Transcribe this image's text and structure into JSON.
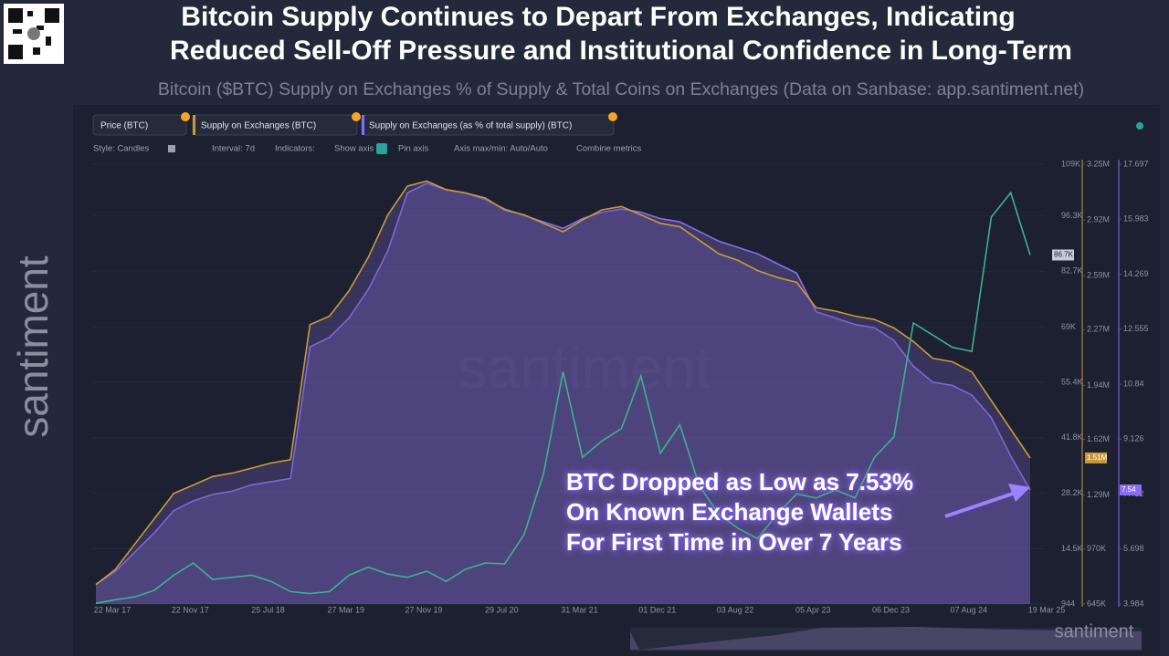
{
  "header": {
    "title_lines": [
      "Bitcoin Supply Continues to Depart From Exchanges, Indicating",
      "Reduced Sell-Off Pressure and Institutional Confidence in Long-Term"
    ],
    "subtitle": "Bitcoin ($BTC) Supply on Exchanges % of Supply & Total Coins on Exchanges (Data on Sanbase: app.santiment.net)"
  },
  "brand": "santiment",
  "tabs": [
    "Price (BTC)",
    "Supply on Exchanges (BTC)",
    "Supply on Exchanges (as % of total supply) (BTC)"
  ],
  "toolbar": [
    "Style: Candles",
    "Interval: 7d",
    "Indicators:",
    "Show axis",
    "Pin axis",
    "Axis max/min: Auto/Auto",
    "Combine metrics"
  ],
  "chart_data": {
    "type": "line",
    "annotation_lines": [
      "BTC Dropped as Low as 7.53%",
      "On Known Exchange Wallets",
      "For First Time in Over 7 Years"
    ],
    "categories": [
      "22 Mar 17",
      null,
      null,
      null,
      "22 Nov 17",
      null,
      null,
      null,
      "25 Jul 18",
      null,
      null,
      null,
      "27 Mar 19",
      null,
      null,
      null,
      "27 Nov 19",
      null,
      null,
      null,
      "29 Jul 20",
      null,
      null,
      null,
      "31 Mar 21",
      null,
      null,
      null,
      "01 Dec 21",
      null,
      null,
      null,
      "03 Aug 22",
      null,
      null,
      null,
      "05 Apr 23",
      null,
      null,
      null,
      "06 Dec 23",
      null,
      null,
      null,
      "07 Aug 24",
      null,
      null,
      null,
      "19 Mar 25"
    ],
    "series": [
      {
        "name": "Supply on Exchanges (as % of total supply) (BTC)",
        "color": "#8b6cf0",
        "axis": "y3",
        "area": true,
        "last_label": "7.54",
        "values": [
          4.6,
          5.0,
          5.6,
          6.2,
          6.9,
          7.2,
          7.4,
          7.5,
          7.7,
          7.8,
          7.9,
          12.0,
          12.3,
          12.9,
          13.8,
          15.0,
          16.8,
          17.1,
          16.9,
          16.8,
          16.6,
          16.3,
          16.1,
          15.9,
          15.7,
          16.0,
          16.2,
          16.3,
          16.2,
          16.0,
          15.9,
          15.6,
          15.3,
          15.1,
          14.9,
          14.6,
          14.3,
          13.1,
          12.9,
          12.7,
          12.6,
          12.2,
          11.4,
          10.9,
          10.8,
          10.5,
          9.8,
          8.6,
          7.54
        ]
      },
      {
        "name": "Supply on Exchanges (BTC)",
        "color": "#c99a3b",
        "axis": "y2",
        "area": true,
        "last_label": "1.51M",
        "values": [
          760000,
          850000,
          1000000,
          1150000,
          1300000,
          1350000,
          1400000,
          1420000,
          1450000,
          1480000,
          1500000,
          2300000,
          2350000,
          2500000,
          2700000,
          2950000,
          3120000,
          3150000,
          3100000,
          3080000,
          3050000,
          2980000,
          2950000,
          2900000,
          2850000,
          2920000,
          2980000,
          3000000,
          2950000,
          2900000,
          2880000,
          2800000,
          2720000,
          2680000,
          2620000,
          2580000,
          2550000,
          2400000,
          2380000,
          2350000,
          2330000,
          2280000,
          2200000,
          2100000,
          2080000,
          2020000,
          1850000,
          1680000,
          1510000
        ]
      },
      {
        "name": "Price (BTC)",
        "color": "#3fb08f",
        "axis": "y",
        "area": false,
        "last_label": "86.7K",
        "values": [
          1100,
          2000,
          2700,
          4300,
          8000,
          11000,
          7000,
          7500,
          8000,
          6500,
          4000,
          3500,
          4000,
          8000,
          10000,
          8300,
          7500,
          9000,
          6500,
          9500,
          11000,
          10800,
          18000,
          33000,
          58000,
          37000,
          41000,
          44000,
          57000,
          38000,
          45000,
          30000,
          23000,
          19500,
          17000,
          23000,
          28000,
          27000,
          29000,
          27000,
          37000,
          42000,
          70000,
          67000,
          64000,
          63000,
          96000,
          102000,
          86700
        ]
      }
    ],
    "ylim": [
      944,
      109000
    ],
    "yticks": [
      944,
      {
        "value": 14500,
        "label": "14.5K"
      },
      {
        "value": 28200,
        "label": "28.2K"
      },
      {
        "value": 41800,
        "label": "41.8K"
      },
      {
        "value": 55400,
        "label": "55.4K"
      },
      {
        "value": 69000,
        "label": "69K"
      },
      {
        "value": 82700,
        "label": "82.7K"
      },
      {
        "value": 96300,
        "label": "96.3K"
      },
      {
        "value": 109000,
        "label": "109K"
      }
    ],
    "y2lim": [
      645000,
      3250000
    ],
    "y2ticks": [
      {
        "value": 645000,
        "label": "645K"
      },
      {
        "value": 970000,
        "label": "970K"
      },
      {
        "value": 1290000,
        "label": "1.29M"
      },
      {
        "value": 1620000,
        "label": "1.62M"
      },
      {
        "value": 1940000,
        "label": "1.94M"
      },
      {
        "value": 2270000,
        "label": "2.27M"
      },
      {
        "value": 2590000,
        "label": "2.59M"
      },
      {
        "value": 2920000,
        "label": "2.92M"
      },
      {
        "value": 3250000,
        "label": "3.25M"
      }
    ],
    "y3lim": [
      3.984,
      17.697
    ],
    "y3ticks": [
      3.984,
      5.698,
      7.412,
      9.126,
      10.84,
      12.555,
      14.269,
      15.983,
      17.697
    ]
  }
}
